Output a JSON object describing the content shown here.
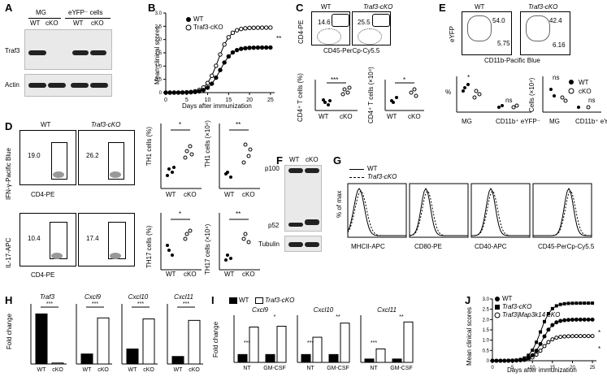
{
  "panels": {
    "A": {
      "letter": "A",
      "groups": [
        "MG",
        "eYFP⁻ cells"
      ],
      "lanes": [
        "WT",
        "cKO",
        "WT",
        "cKO"
      ],
      "rows": [
        "Traf3",
        "Actin"
      ]
    },
    "B": {
      "letter": "B",
      "legend": [
        "WT",
        "Traf3-cKO"
      ],
      "ylabel": "Mean clinical scores",
      "xlabel": "Days after immunization",
      "sig": "**",
      "xticks": [
        "0",
        "5",
        "10",
        "15",
        "20",
        "25"
      ],
      "yticks": [
        "0",
        "0.5",
        "1.0",
        "1.5",
        "2.0",
        "2.5",
        "3.0"
      ]
    },
    "C": {
      "letter": "C",
      "headers": [
        "WT",
        "Traf3-cKO"
      ],
      "values": [
        "14.6",
        "25.5"
      ],
      "xaxis": "CD45-PerCp-Cy5.5",
      "yaxis": "CD4-PE",
      "plot1_ylabel": "CD4⁺ T cells (%)",
      "plot2_ylabel": "CD4⁺ T cells (×10⁴)",
      "sig1": "***",
      "sig2": "*",
      "xcats": [
        "WT",
        "cKO"
      ]
    },
    "D": {
      "letter": "D",
      "headers": [
        "WT",
        "Traf3-cKO"
      ],
      "top_values": [
        "19.0",
        "26.2"
      ],
      "bottom_values": [
        "10.4",
        "17.4"
      ],
      "top_yaxis": "IFN-γ-Pacific Blue",
      "bottom_yaxis": "IL-17-APC",
      "xaxis": "CD4-PE",
      "th1_pct": "TH1 cells (%)",
      "th1_num": "TH1 cells (×10⁴)",
      "th17_pct": "TH17 cells (%)",
      "th17_num": "TH17 cells (×10⁴)",
      "sig": [
        "*",
        "**",
        "*",
        "**"
      ],
      "xcats": [
        "WT",
        "cKO"
      ]
    },
    "E": {
      "letter": "E",
      "headers": [
        "WT",
        "Traf3-cKO"
      ],
      "wt_values": [
        "54.0",
        "5.75"
      ],
      "cko_values": [
        "42.4",
        "6.16"
      ],
      "xaxis": "CD11b-Pacific Blue",
      "yaxis": "eYFP",
      "ylabel1": "%",
      "ylabel2": "Cells (×10⁴)",
      "legend": [
        "WT",
        "cKO"
      ],
      "cats": [
        "MG",
        "CD11b⁺ eYFP⁻"
      ],
      "sig1": [
        "*",
        "ns"
      ],
      "sig2": [
        "ns",
        "ns"
      ]
    },
    "F": {
      "letter": "F",
      "lanes": [
        "WT",
        "cKO"
      ],
      "rows": [
        "p100",
        "p52",
        "Tubulin"
      ]
    },
    "G": {
      "letter": "G",
      "legend": [
        "WT",
        "Traf3-cKO"
      ],
      "ylabel": "% of max",
      "xlabels": [
        "MHCII-APC",
        "CD80-PE",
        "CD40-APC",
        "CD45-PerCp-Cy5.5"
      ]
    },
    "H": {
      "letter": "H",
      "genes": [
        "Traf3",
        "Cxcl9",
        "Cxcl10",
        "Cxcl11"
      ],
      "ylabel": "Fold change",
      "sig": "***",
      "xcats": [
        "WT",
        "cKO"
      ],
      "bars": [
        [
          1.0,
          0.02
        ],
        [
          1.0,
          4.6
        ],
        [
          1.0,
          3.0
        ],
        [
          1.0,
          5.8
        ]
      ]
    },
    "I": {
      "letter": "I",
      "legend": [
        "WT",
        "Traf3-cKO"
      ],
      "genes": [
        "Cxcl9",
        "Cxcl10",
        "Cxcl11"
      ],
      "ylabel": "Fold change",
      "xcats": [
        "NT",
        "GM-CSF"
      ],
      "sig": [
        [
          "***",
          "*"
        ],
        [
          "***",
          "**"
        ],
        [
          "***",
          "**"
        ]
      ]
    },
    "J": {
      "letter": "J",
      "legend": [
        "WT",
        "Traf3-cKO",
        "Traf3|Map3k14-cKO"
      ],
      "ylabel": "Mean clinical scores",
      "xlabel": "Days after immunization",
      "xticks": [
        "0",
        "5",
        "10",
        "15",
        "20",
        "25"
      ],
      "yticks": [
        "0",
        "0.5",
        "1.0",
        "1.5",
        "2.0",
        "2.5",
        "3.0"
      ],
      "sig": [
        "*",
        "*"
      ]
    }
  }
}
